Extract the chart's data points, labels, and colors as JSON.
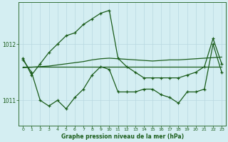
{
  "title": "Graphe pression niveau de la mer (hPa)",
  "bg_color": "#d4eef2",
  "grid_color": "#b8d8e0",
  "line_color": "#1a5c1a",
  "xlim": [
    -0.5,
    23.5
  ],
  "ylim": [
    1010.55,
    1012.75
  ],
  "yticks": [
    1011,
    1012
  ],
  "xticks": [
    0,
    1,
    2,
    3,
    4,
    5,
    6,
    7,
    8,
    9,
    10,
    11,
    12,
    13,
    14,
    15,
    16,
    17,
    18,
    19,
    20,
    21,
    22,
    23
  ],
  "spike_x": [
    0,
    1,
    2,
    3,
    4,
    5,
    6,
    7,
    8,
    9,
    10,
    11,
    12,
    13,
    14,
    15,
    16,
    17,
    18,
    19,
    20,
    21,
    22,
    23
  ],
  "spike_y": [
    1011.75,
    1011.45,
    1011.65,
    1011.85,
    1012.0,
    1012.15,
    1012.2,
    1012.35,
    1012.45,
    1012.55,
    1012.6,
    1011.75,
    1011.6,
    1011.5,
    1011.4,
    1011.4,
    1011.4,
    1011.4,
    1011.4,
    1011.45,
    1011.5,
    1011.6,
    1012.1,
    1011.65
  ],
  "flat_x": [
    0,
    1,
    2,
    3,
    4,
    5,
    6,
    7,
    8,
    9,
    10,
    11,
    12,
    13,
    14,
    15,
    16,
    17,
    18,
    19,
    20,
    21,
    22,
    23
  ],
  "flat_y": [
    1011.6,
    1011.6,
    1011.6,
    1011.6,
    1011.6,
    1011.6,
    1011.6,
    1011.6,
    1011.6,
    1011.6,
    1011.6,
    1011.6,
    1011.6,
    1011.6,
    1011.6,
    1011.6,
    1011.6,
    1011.6,
    1011.6,
    1011.6,
    1011.6,
    1011.6,
    1011.6,
    1011.6
  ],
  "rise_x": [
    0,
    1,
    2,
    3,
    4,
    5,
    6,
    7,
    8,
    9,
    10,
    11,
    12,
    13,
    14,
    15,
    16,
    17,
    18,
    19,
    20,
    21,
    22,
    23
  ],
  "rise_y": [
    1011.58,
    1011.59,
    1011.6,
    1011.61,
    1011.63,
    1011.65,
    1011.67,
    1011.69,
    1011.72,
    1011.74,
    1011.75,
    1011.74,
    1011.73,
    1011.72,
    1011.71,
    1011.7,
    1011.71,
    1011.72,
    1011.72,
    1011.73,
    1011.74,
    1011.75,
    1011.76,
    1011.77
  ],
  "zigzag_x": [
    0,
    1,
    2,
    3,
    4,
    5,
    6,
    7,
    8,
    9,
    10,
    11,
    12,
    13,
    14,
    15,
    16,
    17,
    18,
    19,
    20,
    21,
    22,
    23
  ],
  "zigzag_y": [
    1011.72,
    1011.5,
    1011.0,
    1010.9,
    1011.0,
    1010.85,
    1011.05,
    1011.2,
    1011.45,
    1011.6,
    1011.55,
    1011.15,
    1011.15,
    1011.15,
    1011.2,
    1011.2,
    1011.1,
    1011.05,
    1010.95,
    1011.15,
    1011.15,
    1011.2,
    1012.0,
    1011.5
  ]
}
